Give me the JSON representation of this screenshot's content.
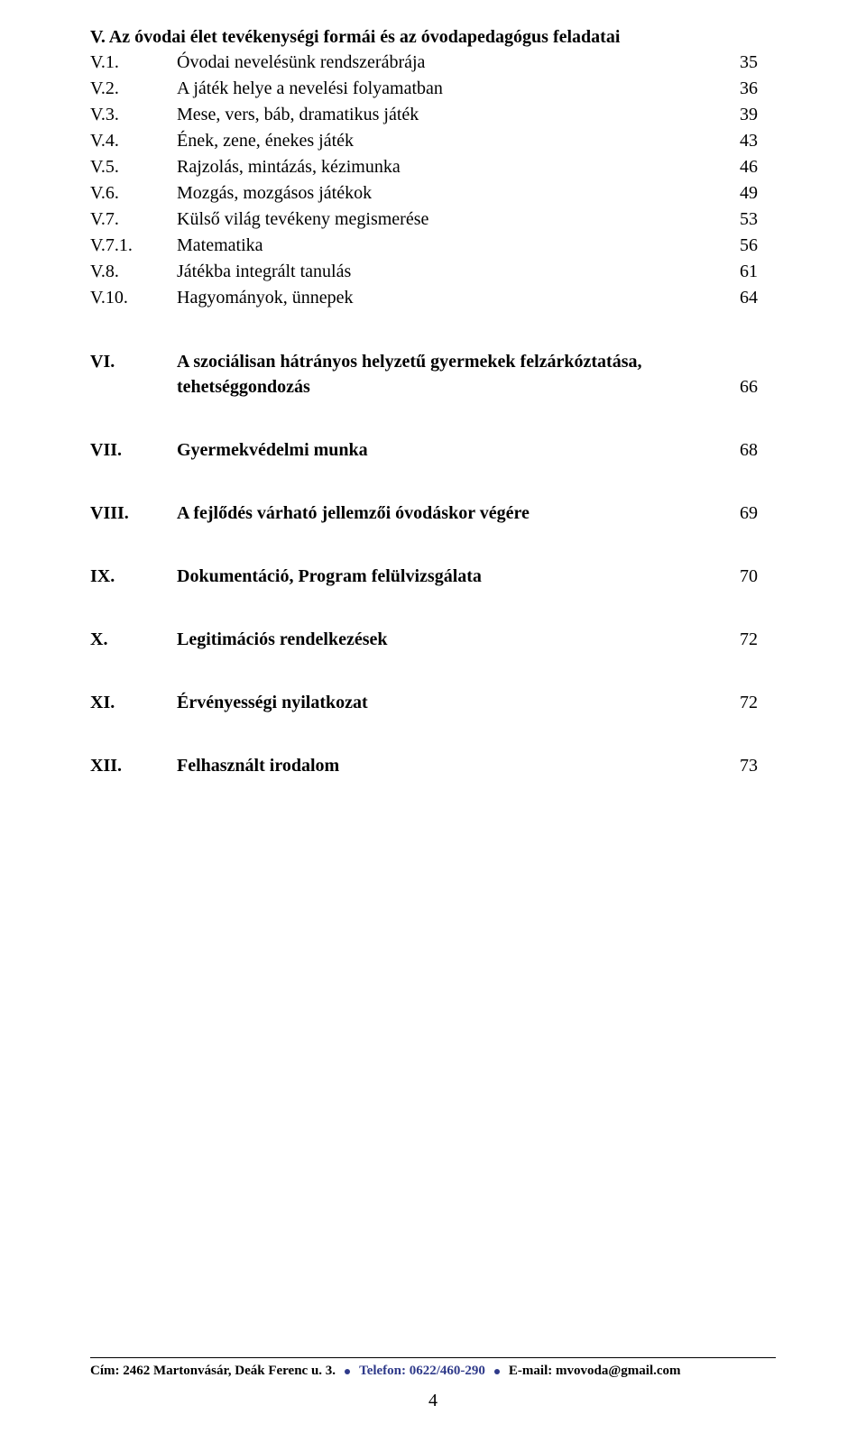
{
  "colors": {
    "text": "#000000",
    "bg": "#ffffff",
    "accent": "#2f3a8a"
  },
  "typography": {
    "font_family": "Times New Roman",
    "body_fontsize_pt": 15,
    "footer_fontsize_pt": 11
  },
  "sectionV": {
    "heading_label": "V.",
    "heading_text": "Az óvodai élet tevékenységi formái és az óvodapedagógus feladatai",
    "items": [
      {
        "label": "V.1.",
        "text": "Óvodai nevelésünk rendszerábrája",
        "page": "35"
      },
      {
        "label": "V.2.",
        "text": "A játék helye a nevelési folyamatban",
        "page": "36"
      },
      {
        "label": "V.3.",
        "text": "Mese, vers, báb, dramatikus játék",
        "page": "39"
      },
      {
        "label": "V.4.",
        "text": "Ének, zene, énekes játék",
        "page": "43"
      },
      {
        "label": "V.5.",
        "text": "Rajzolás, mintázás, kézimunka",
        "page": "46"
      },
      {
        "label": "V.6.",
        "text": "Mozgás, mozgásos játékok",
        "page": "49"
      },
      {
        "label": "V.7.",
        "text": "Külső világ tevékeny megismerése",
        "page": "53"
      },
      {
        "label": "V.7.1.",
        "text": "Matematika",
        "page": "56"
      },
      {
        "label": "V.8.",
        "text": "Játékba integrált tanulás",
        "page": "61"
      },
      {
        "label": "V.10.",
        "text": "Hagyományok, ünnepek",
        "page": "64"
      }
    ]
  },
  "mainSections": [
    {
      "label": "VI.",
      "text_line1": "A szociálisan hátrányos helyzetű gyermekek felzárkóztatása,",
      "text_line2": "tehetséggondozás",
      "page": "66"
    },
    {
      "label": "VII.",
      "text_line1": "Gyermekvédelmi munka",
      "text_line2": "",
      "page": "68"
    },
    {
      "label": "VIII.",
      "text_line1": "A fejlődés várható jellemzői óvodáskor végére",
      "text_line2": "",
      "page": "69"
    },
    {
      "label": "IX.",
      "text_line1": "Dokumentáció, Program felülvizsgálata",
      "text_line2": "",
      "page": "70"
    },
    {
      "label": "X.",
      "text_line1": "Legitimációs rendelkezések",
      "text_line2": "",
      "page": "72"
    },
    {
      "label": "XI.",
      "text_line1": "Érvényességi nyilatkozat",
      "text_line2": "",
      "page": "72"
    },
    {
      "label": "XII.",
      "text_line1": "Felhasznált irodalom",
      "text_line2": "",
      "page": "73"
    }
  ],
  "footer": {
    "address": "Cím: 2462 Martonvásár, Deák Ferenc u. 3.",
    "phone": "Telefon: 0622/460-290",
    "email": "E-mail: mvovoda@gmail.com"
  },
  "page_number": "4"
}
